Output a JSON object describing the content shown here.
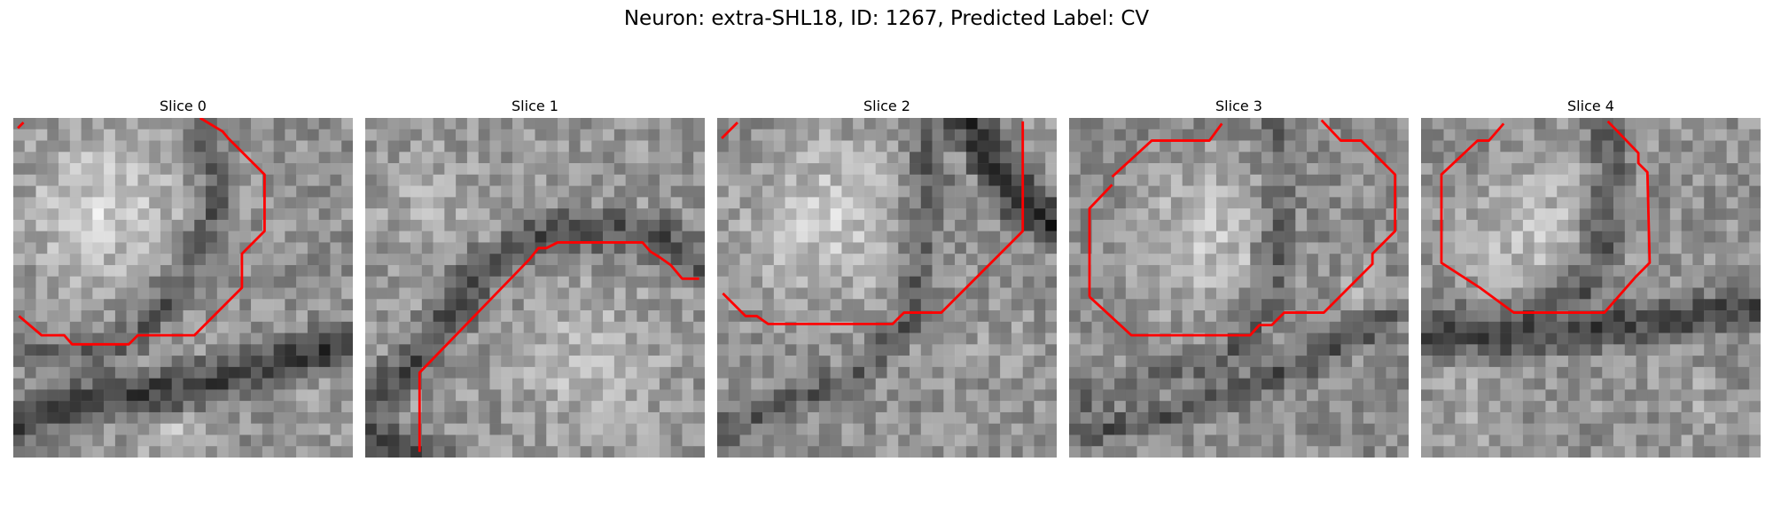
{
  "figure": {
    "title": "Neuron: extra-SHL18, ID: 1267, Predicted Label: CV",
    "contour_color": "#ff0000"
  },
  "slices": [
    {
      "title": "Slice 0"
    },
    {
      "title": "Slice 1"
    },
    {
      "title": "Slice 2"
    },
    {
      "title": "Slice 3"
    },
    {
      "title": "Slice 4"
    }
  ]
}
